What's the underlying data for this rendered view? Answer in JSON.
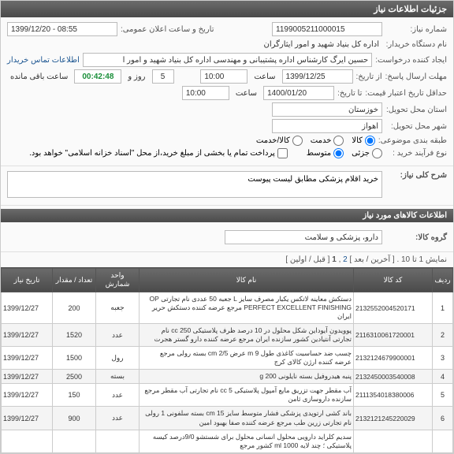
{
  "header": {
    "title": "جزئیات اطلاعات نیاز"
  },
  "form": {
    "need_no_label": "شماره نیاز:",
    "need_no": "1199005211000015",
    "public_time_label": "تاریخ و ساعت اعلان عمومی:",
    "public_time": "1399/12/20 - 08:55",
    "buyer_org_label": "نام دستگاه خریدار:",
    "buyer_org": "اداره کل بنیاد شهید و امور ایثارگران",
    "creator_label": "ایجاد کننده درخواست:",
    "creator": "حسین ایرگ کارشناس اداره پشتیبانی و مهندسی اداره کل بنیاد شهید و امور ا",
    "contact_link": "اطلاعات تماس خریدار",
    "deadline_label": "مهلت ارسال پاسخ:",
    "from_date_label": "از تاریخ:",
    "from_date": "1399/12/25",
    "from_time_label": "ساعت",
    "from_time": "10:00",
    "remain_days": "5",
    "remain_days_label": "روز و",
    "countdown": "00:42:48",
    "remain_label": "ساعت باقی مانده",
    "min_valid_label": "حداقل تاریخ اعتبار قیمت:",
    "to_date_label": "تا تاریخ:",
    "to_date": "1400/01/20",
    "to_time_label": "ساعت",
    "to_time": "10:00",
    "province_label": "استان محل تحویل:",
    "province": "خوزستان",
    "city_label": "شهر محل تحویل:",
    "city": "اهواز",
    "budget_label": "طبقه بندی موضوعی:",
    "budget_opts": {
      "goods": "کالا",
      "service": "خدمت",
      "both": "کالا/خدمت"
    },
    "process_label": "نوع فرآیند خرید :",
    "process_opts": {
      "small": "جزئی",
      "medium": "متوسط"
    },
    "payment_note": "پرداخت تمام یا بخشی از مبلغ خرید،از محل \"اسناد خزانه اسلامی\" خواهد بود.",
    "desc_label": "شرح کلی نیاز:",
    "desc": "خرید اقلام پزشکی مطابق لیست پیوست"
  },
  "items_section": {
    "title": "اطلاعات کالاهای مورد نیاز"
  },
  "group": {
    "label": "گروه کالا:",
    "value": "دارو، پزشکی و سلامت"
  },
  "pager": {
    "text1": "نمایش 1 تا 10 . [ آخرین / بعد ] ",
    "link2": "2",
    "text2": " , ",
    "link1": "1",
    "text3": " [ قبل / اولین ]"
  },
  "table": {
    "headers": {
      "row": "ردیف",
      "code": "کد کالا",
      "name": "نام کالا",
      "unit": "واحد شمارش",
      "qty": "تعداد / مقدار",
      "date": "تاریخ نیاز"
    },
    "rows": [
      {
        "n": "1",
        "code": "2132552004520171",
        "name": "دستکش معاینه لاتکس یکبار مصرف سایز L جعبه 50 عددی نام تجارتی OP PERFECT EXCELLENT FINISHING مرجع عرضه کننده دستکش حریر ایران",
        "unit": "جعبه",
        "qty": "200",
        "date": "1399/12/27"
      },
      {
        "n": "2",
        "code": "2116310061720001",
        "name": "پوویدون آیوداین شکل محلول در 10 درصد ظرف پلاستیکی cc 250 نام تجارتی آنتیادین کشور سازنده ایران مرجع عرضه کننده دارو گستر هجرت",
        "unit": "عدد",
        "qty": "1520",
        "date": "1399/12/27"
      },
      {
        "n": "3",
        "code": "2132124679900001",
        "name": "چسب ضد حساسیت کاغذی طول m 9 عرض cm 2/5 بسته رولی مرجع عرضه کننده ارژن کالای کرج",
        "unit": "رول",
        "qty": "1500",
        "date": "1399/12/27"
      },
      {
        "n": "4",
        "code": "2132450003540008",
        "name": "پنبه هیدروفیل بسته نایلونی g 200",
        "unit": "بسته",
        "qty": "2500",
        "date": "1399/12/27"
      },
      {
        "n": "5",
        "code": "2111354018380006",
        "name": "آب مقطر جهت تزریق مایع آمپول پلاستیکی cc 5 نام تجارتی آب مقطر مرجع سازنده داروسازی ثامن",
        "unit": "عدد",
        "qty": "150",
        "date": "1399/12/27"
      },
      {
        "n": "6",
        "code": "2132121245220029",
        "name": "باند کشی ارتوپدی پزشکی فشار متوسط سایز cm 15 بسته سلفونی 1 رولی نام تجارتی زرین طب مرجع عرضه کننده صفا بهبود امین",
        "unit": "عدد",
        "qty": "900",
        "date": "1399/12/27"
      },
      {
        "n": "",
        "code": "",
        "name": "سدیم کلراید دارویی محلول انسانی محلول برای شستشو 9/0درصد کیسه پلاستیکی ؛ چند لایه ml 1000 کشور مرجع",
        "unit": "",
        "qty": "",
        "date": ""
      }
    ]
  }
}
